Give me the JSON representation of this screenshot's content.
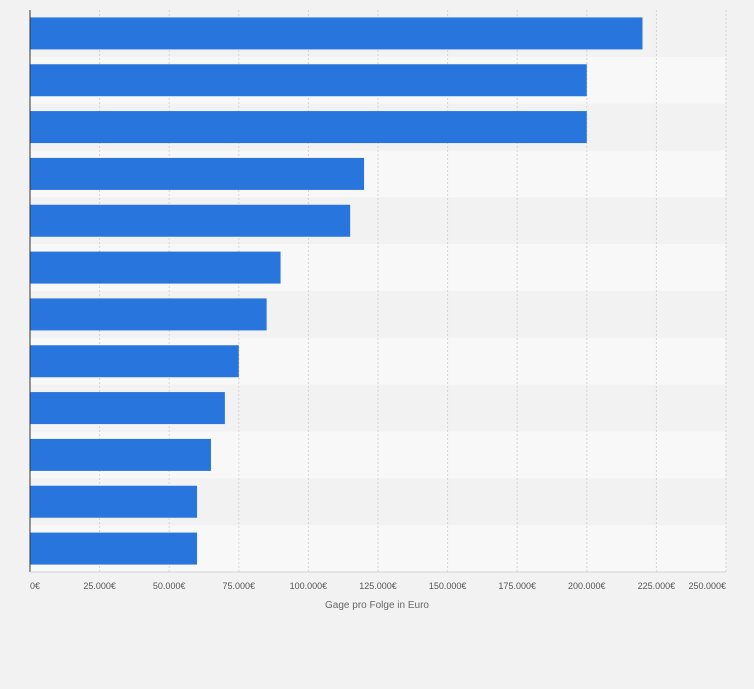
{
  "chart_data": {
    "type": "bar",
    "orientation": "horizontal",
    "title": "",
    "xlabel": "Gage pro Folge in Euro",
    "ylabel": "",
    "categories": [
      "",
      "",
      "",
      "",
      "",
      "",
      "",
      "",
      "",
      "",
      "",
      ""
    ],
    "values": [
      220000,
      200000,
      200000,
      120000,
      115000,
      90000,
      85000,
      75000,
      70000,
      65000,
      60000,
      60000
    ],
    "xlim": [
      0,
      250000
    ],
    "ticks": [
      0,
      25000,
      50000,
      75000,
      100000,
      125000,
      150000,
      175000,
      200000,
      225000,
      250000
    ],
    "tick_labels": [
      "0€",
      "25.000€",
      "50.000€",
      "75.000€",
      "100.000€",
      "125.000€",
      "150.000€",
      "175.000€",
      "200.000€",
      "225.000€",
      "250.000€"
    ],
    "grid": true,
    "legend": "none",
    "colors": {
      "bar": "#2876dd",
      "background": "#f2f2f2",
      "band_light": "#f8f8f8",
      "band_dark": "#f2f2f2",
      "gridline": "#d4d4d4",
      "axis": "#333333"
    }
  }
}
